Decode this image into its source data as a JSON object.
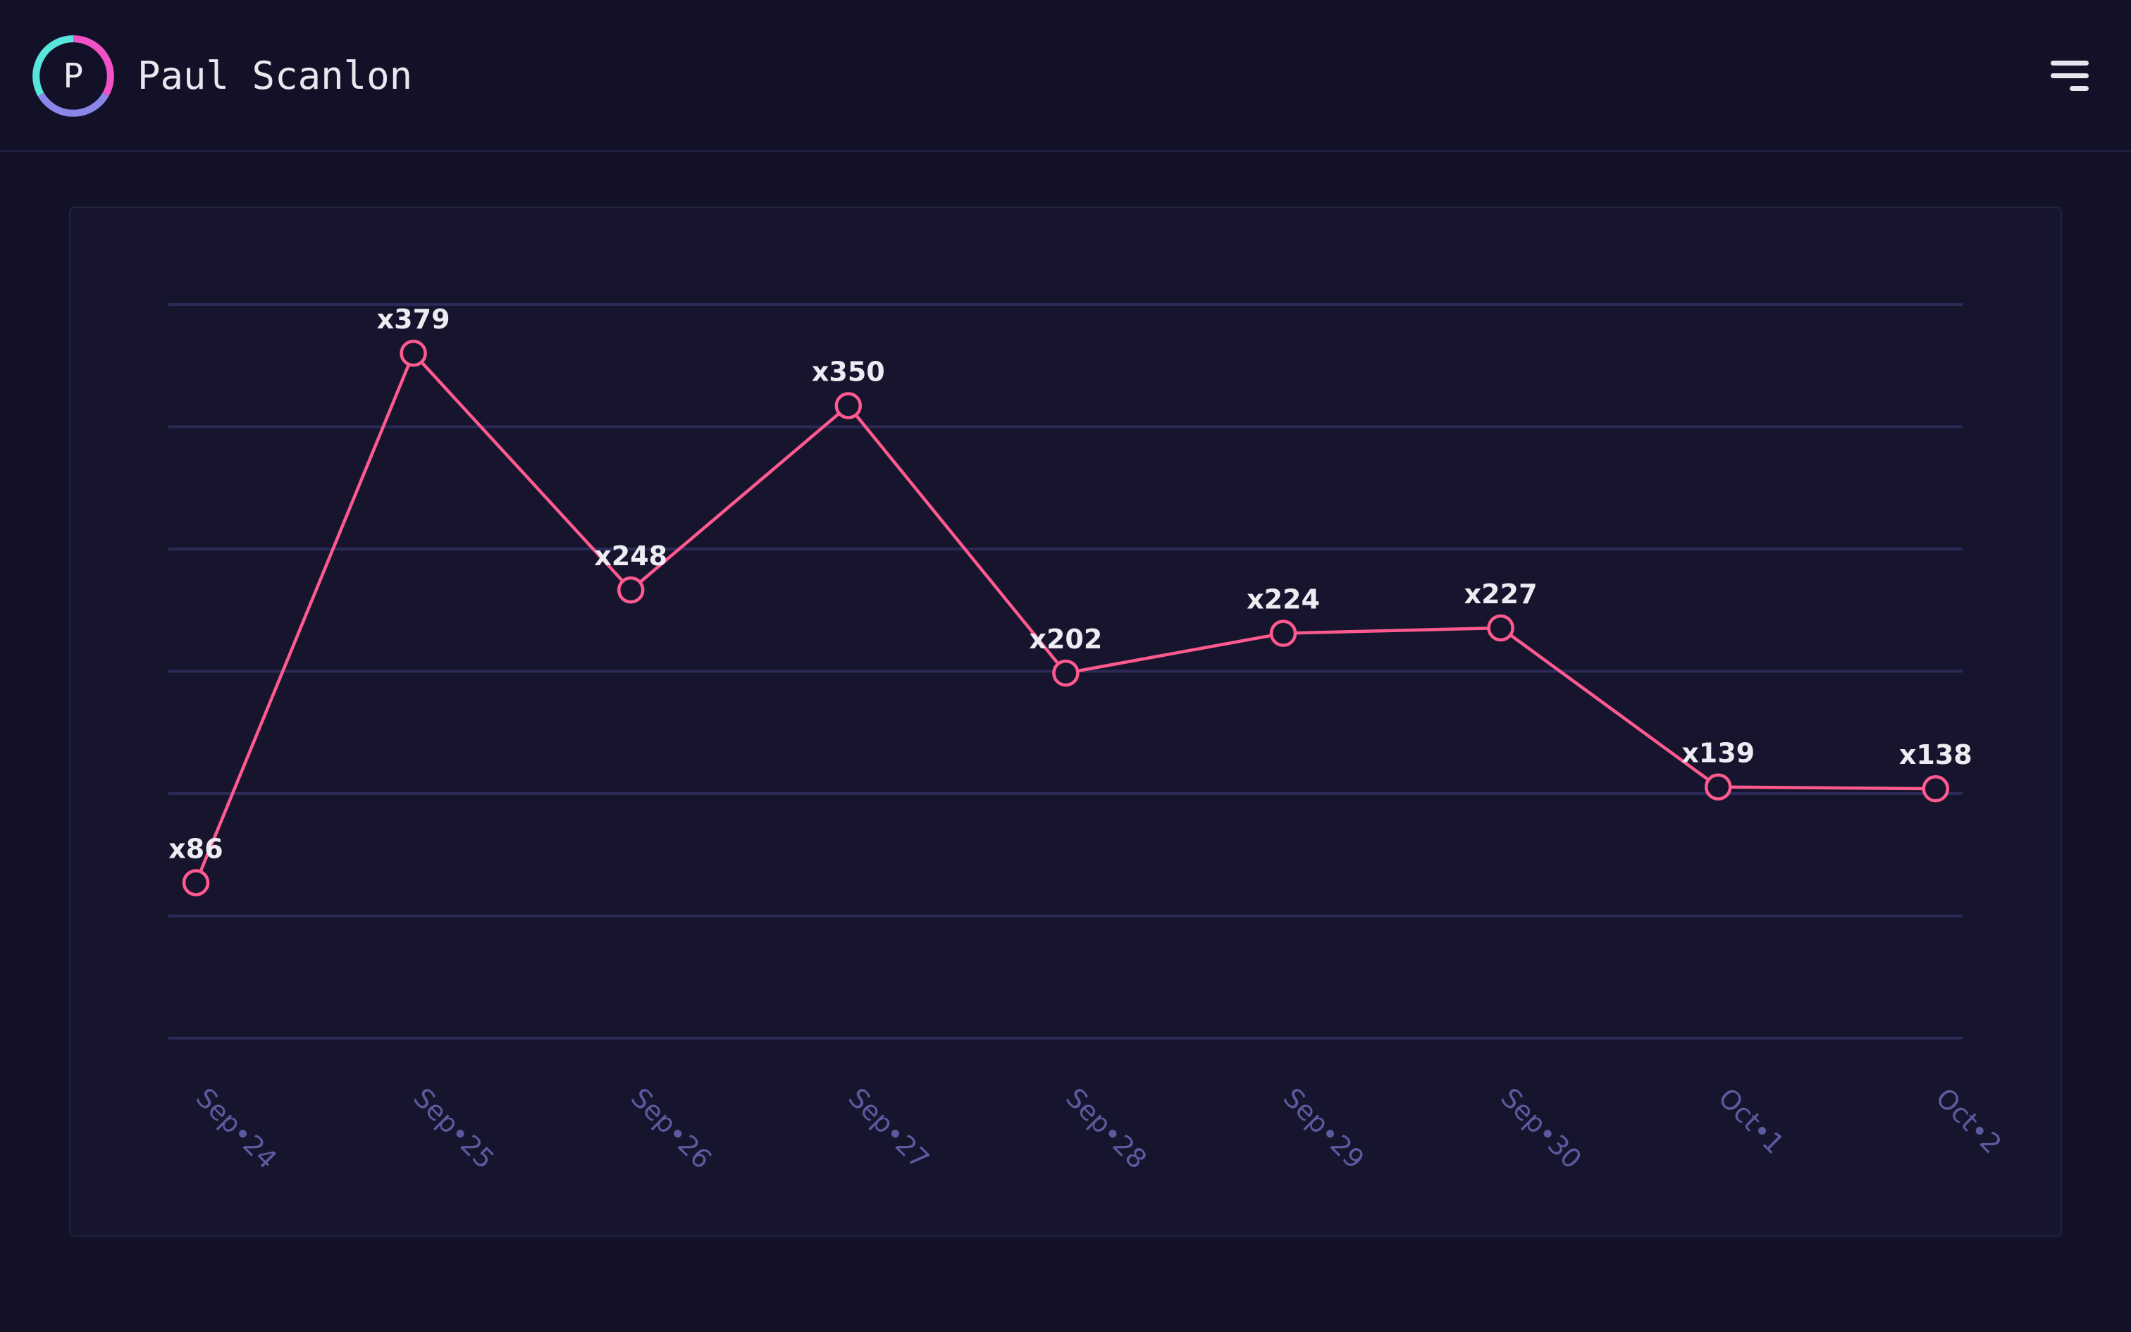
{
  "header": {
    "logo_letter": "P",
    "name": "Paul Scanlon",
    "logo_colors": [
      "#f152c6",
      "#8b87ea",
      "#58e6dc"
    ],
    "menu_icon": "hamburger-menu-icon"
  },
  "chart_data": {
    "type": "line",
    "categories": [
      "Sep•24",
      "Sep•25",
      "Sep•26",
      "Sep•27",
      "Sep•28",
      "Sep•29",
      "Sep•30",
      "Oct•1",
      "Oct•2"
    ],
    "values": [
      86,
      379,
      248,
      350,
      202,
      224,
      227,
      139,
      138
    ],
    "data_labels": [
      "x86",
      "x379",
      "x248",
      "x350",
      "x202",
      "x224",
      "x227",
      "x139",
      "x138"
    ],
    "ylim": [
      0,
      406
    ],
    "grid": true,
    "y_tick_labels_shown": false,
    "title": "",
    "xlabel": "",
    "ylabel": "",
    "colors": {
      "line": "#ff5a8f",
      "grid": "#2c2a56",
      "tick_label": "#5c5a9e",
      "data_label": "#ececf2"
    }
  }
}
